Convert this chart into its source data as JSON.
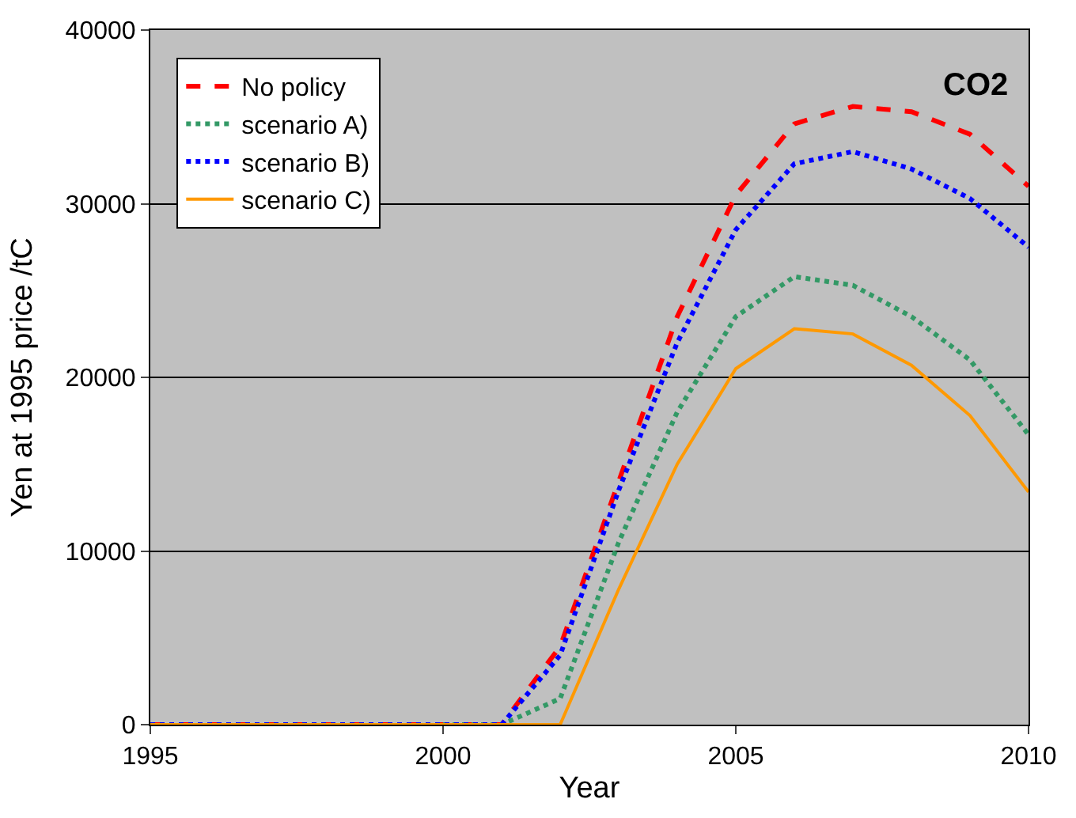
{
  "chart_data": {
    "type": "line",
    "xlabel": "Year",
    "ylabel": "Yen at 1995 price /tC",
    "x": [
      1995,
      1996,
      1997,
      1998,
      1999,
      2000,
      2001,
      2002,
      2003,
      2004,
      2005,
      2006,
      2007,
      2008,
      2009,
      2010
    ],
    "series": [
      {
        "name": "No policy",
        "color": "#ff0000",
        "line_style": "dashed",
        "values": [
          0,
          0,
          0,
          0,
          0,
          0,
          0,
          4500,
          14000,
          23500,
          30500,
          34600,
          35600,
          35300,
          34000,
          31000
        ]
      },
      {
        "name": "scenario A)",
        "color": "#339966",
        "line_style": "dotted",
        "values": [
          null,
          null,
          null,
          null,
          null,
          0,
          0,
          1500,
          10500,
          18000,
          23500,
          25800,
          25300,
          23500,
          21000,
          16700
        ]
      },
      {
        "name": "scenario B)",
        "color": "#0000ff",
        "line_style": "dotted",
        "values": [
          0,
          0,
          0,
          0,
          0,
          0,
          0,
          4000,
          13500,
          22000,
          28500,
          32300,
          33000,
          32000,
          30300,
          27500
        ]
      },
      {
        "name": "scenario C)",
        "color": "#ff9900",
        "line_style": "solid",
        "values": [
          0,
          0,
          0,
          0,
          0,
          0,
          0,
          0,
          7800,
          15000,
          20500,
          22800,
          22500,
          20700,
          17800,
          13400
        ]
      }
    ],
    "xlim": [
      1995,
      2010
    ],
    "xticks": [
      1995,
      2000,
      2005,
      2010
    ],
    "ylim": [
      0,
      40000
    ],
    "yticks": [
      0,
      10000,
      20000,
      30000,
      40000
    ],
    "grid": "y",
    "legend": "top left",
    "marker": "none",
    "annotations": [
      "CO2"
    ]
  }
}
